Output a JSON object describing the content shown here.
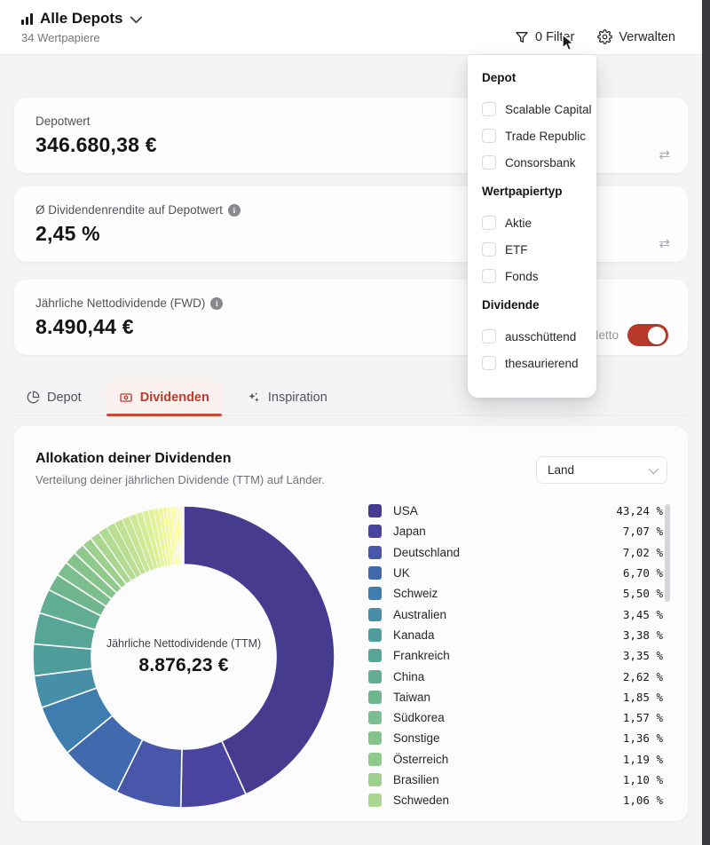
{
  "header": {
    "title": "Alle Depots",
    "subtitle": "34 Wertpapiere",
    "filter_label": "0 Filter",
    "manage_label": "Verwalten"
  },
  "filter_panel": {
    "sections": [
      {
        "title": "Depot",
        "options": [
          "Scalable Capital",
          "Trade Republic",
          "Consorsbank"
        ]
      },
      {
        "title": "Wertpapiertyp",
        "options": [
          "Aktie",
          "ETF",
          "Fonds"
        ]
      },
      {
        "title": "Dividende",
        "options": [
          "ausschüttend",
          "thesaurierend"
        ]
      }
    ]
  },
  "stat_cards": [
    {
      "label": "Depotwert",
      "value": "346.680,38 €"
    },
    {
      "label": "Ø Dividendenrendite auf Depotwert",
      "value": "2,45 %"
    },
    {
      "label": "Jährliche Nettodividende (FWD)",
      "value": "8.490,44 €",
      "toggle_label": "Netto",
      "toggle_on": true
    }
  ],
  "tabs": [
    {
      "label": "Depot",
      "active": false
    },
    {
      "label": "Dividenden",
      "active": true
    },
    {
      "label": "Inspiration",
      "active": false
    }
  ],
  "allocation_card": {
    "title": "Allokation deiner Dividenden",
    "subtitle": "Verteilung deiner jährlichen Dividende (TTM) auf Länder.",
    "select_value": "Land",
    "center_label": "Jährliche Nettodividende (TTM)",
    "center_value": "8.876,23 €"
  },
  "chart_data": {
    "type": "pie",
    "title": "Allokation deiner Dividenden",
    "subtitle": "Verteilung deiner jährlichen Dividende (TTM) auf Länder.",
    "center_label": "Jährliche Nettodividende (TTM)",
    "center_value": "8.876,23 €",
    "unit": "%",
    "legend_position": "right",
    "start_angle_deg": 0,
    "direction": "clockwise",
    "categories": [
      "USA",
      "Japan",
      "Deutschland",
      "UK",
      "Schweiz",
      "Australien",
      "Kanada",
      "Frankreich",
      "China",
      "Taiwan",
      "Südkorea",
      "Sonstige",
      "Österreich",
      "Brasilien",
      "Schweden"
    ],
    "values": [
      43.24,
      7.07,
      7.02,
      6.7,
      5.5,
      3.45,
      3.38,
      3.35,
      2.62,
      1.85,
      1.57,
      1.36,
      1.19,
      1.1,
      1.06
    ],
    "colors": [
      "#473b8f",
      "#4a43a0",
      "#4857a9",
      "#4169ae",
      "#3f7daf",
      "#468fa7",
      "#4f9d9b",
      "#57a596",
      "#62ae92",
      "#6fb68e",
      "#7cbe8d",
      "#85c28c",
      "#90c98c",
      "#9dd08e",
      "#aad790"
    ],
    "unlabeled_slices_values": [
      1.0,
      0.95,
      0.88,
      0.82,
      0.75,
      0.7,
      0.64,
      0.58,
      0.52,
      0.47,
      0.42,
      0.37,
      0.32,
      0.28,
      0.24,
      0.2,
      0.16,
      0.13,
      0.11
    ],
    "unlabeled_slices_colors": [
      "#b2da91",
      "#b9de92",
      "#c0e193",
      "#c7e594",
      "#cee895",
      "#d5ec96",
      "#dcef97",
      "#e2f298",
      "#e8f499",
      "#edf69a",
      "#f2f89b",
      "#f6fa9c",
      "#f9fb9d",
      "#fbfc9e",
      "#fdfd9f",
      "#fefda0",
      "#fefea1",
      "#fffea2",
      "#fffea3"
    ]
  },
  "colors": {
    "accent_red": "#c13a2c",
    "toggle_red": "#b8392a",
    "page_bg": "#f4f4f5",
    "card_bg": "#fefefe"
  }
}
